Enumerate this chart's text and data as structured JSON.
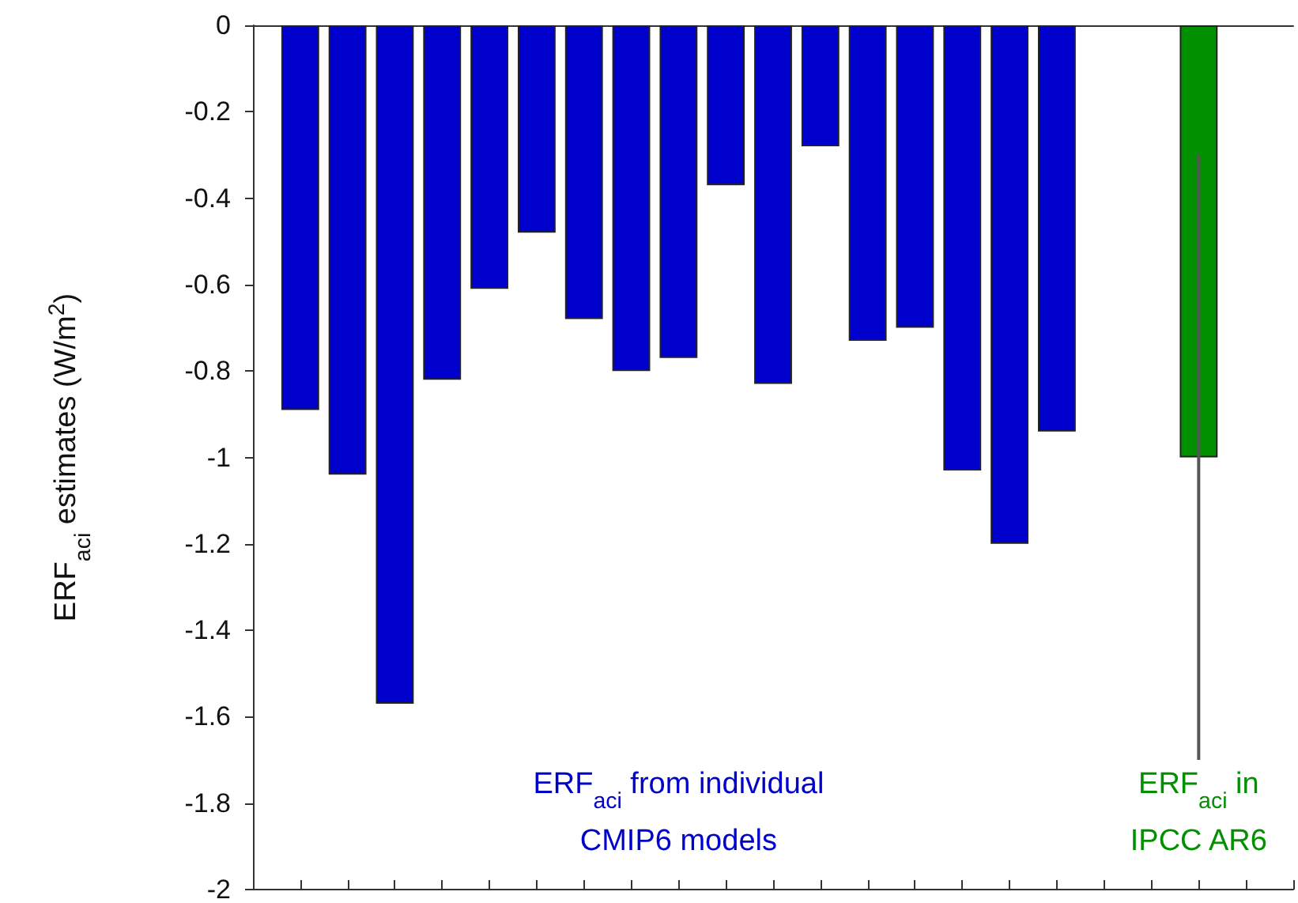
{
  "chart_data": {
    "type": "bar",
    "ylabel": "ERF$_{aci}$ estimates (W/m$^{2}$)",
    "categories": [
      null,
      null,
      null,
      null,
      null,
      null,
      null,
      null,
      null,
      null,
      null,
      null,
      null,
      null,
      null,
      null,
      null,
      null,
      null,
      null,
      null,
      null,
      null
    ],
    "values": [
      null,
      -0.89,
      -1.04,
      -1.57,
      -0.82,
      -0.61,
      -0.48,
      -0.68,
      -0.8,
      -0.77,
      -0.37,
      -0.83,
      -0.28,
      -0.73,
      -0.7,
      -1.03,
      -1.2,
      -0.94,
      null,
      null,
      -1.0,
      null,
      null
    ],
    "colors": [
      null,
      "#0000cc",
      "#0000cc",
      "#0000cc",
      "#0000cc",
      "#0000cc",
      "#0000cc",
      "#0000cc",
      "#0000cc",
      "#0000cc",
      "#0000cc",
      "#0000cc",
      "#0000cc",
      "#0000cc",
      "#0000cc",
      "#0000cc",
      "#0000cc",
      "#0000cc",
      null,
      null,
      "#009000",
      null,
      null
    ],
    "errors": [
      null,
      null,
      null,
      null,
      null,
      null,
      null,
      null,
      null,
      null,
      null,
      null,
      null,
      null,
      null,
      null,
      null,
      null,
      null,
      null,
      [
        -1.7,
        -0.3
      ],
      null,
      null
    ],
    "ylim": [
      -2,
      0
    ],
    "yticks": [
      -2,
      -1.8,
      -1.6,
      -1.4,
      -1.2,
      -1,
      -0.8,
      -0.6,
      -0.4,
      -0.2,
      0
    ],
    "annotations": [
      "ERF$_{aci}$ from individual\nCMIP6 models",
      "ERF$_{aci}$ in\nIPCC AR6"
    ],
    "grid": false
  }
}
